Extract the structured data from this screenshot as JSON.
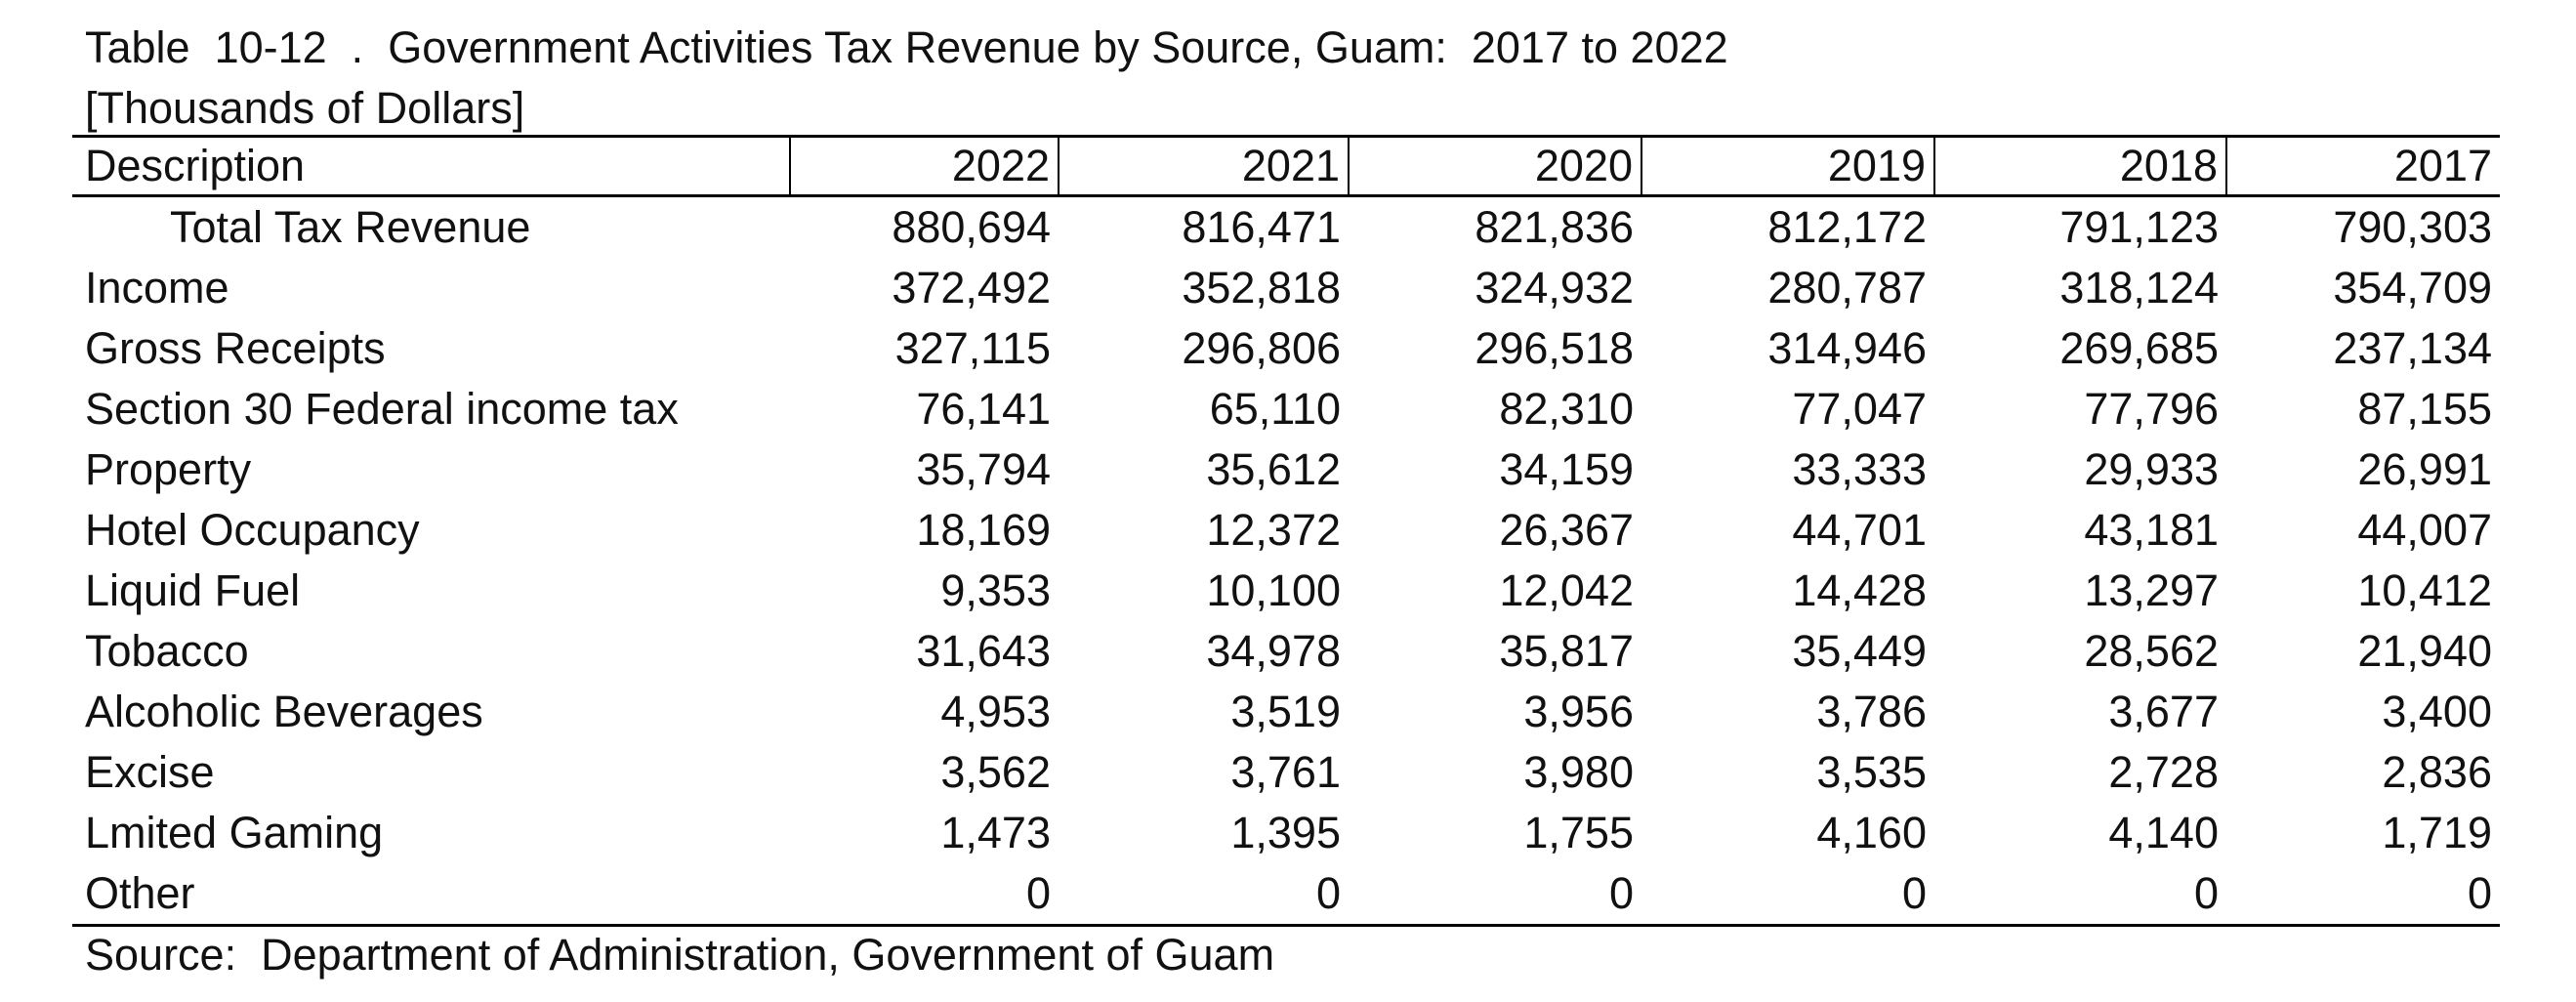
{
  "document": {
    "title": "Table  10-12  .  Government Activities Tax Revenue by Source, Guam:  2017 to 2022",
    "subtitle": "[Thousands of Dollars]",
    "source": "Source:  Department of Administration, Government of Guam"
  },
  "table": {
    "headers": [
      "Description",
      "2022",
      "2021",
      "2020",
      "2019",
      "2018",
      "2017"
    ],
    "rows": [
      {
        "label": "Total Tax Revenue",
        "indent": true,
        "values": [
          "880,694",
          "816,471",
          "821,836",
          "812,172",
          "791,123",
          "790,303"
        ]
      },
      {
        "label": "Income",
        "indent": false,
        "values": [
          "372,492",
          "352,818",
          "324,932",
          "280,787",
          "318,124",
          "354,709"
        ]
      },
      {
        "label": "Gross Receipts",
        "indent": false,
        "values": [
          "327,115",
          "296,806",
          "296,518",
          "314,946",
          "269,685",
          "237,134"
        ]
      },
      {
        "label": "Section 30 Federal income tax",
        "indent": false,
        "values": [
          "76,141",
          "65,110",
          "82,310",
          "77,047",
          "77,796",
          "87,155"
        ]
      },
      {
        "label": "Property",
        "indent": false,
        "values": [
          "35,794",
          "35,612",
          "34,159",
          "33,333",
          "29,933",
          "26,991"
        ]
      },
      {
        "label": "Hotel Occupancy",
        "indent": false,
        "values": [
          "18,169",
          "12,372",
          "26,367",
          "44,701",
          "43,181",
          "44,007"
        ]
      },
      {
        "label": "Liquid Fuel",
        "indent": false,
        "values": [
          "9,353",
          "10,100",
          "12,042",
          "14,428",
          "13,297",
          "10,412"
        ]
      },
      {
        "label": "Tobacco",
        "indent": false,
        "values": [
          "31,643",
          "34,978",
          "35,817",
          "35,449",
          "28,562",
          "21,940"
        ]
      },
      {
        "label": "Alcoholic Beverages",
        "indent": false,
        "values": [
          "4,953",
          "3,519",
          "3,956",
          "3,786",
          "3,677",
          "3,400"
        ]
      },
      {
        "label": "Excise",
        "indent": false,
        "values": [
          "3,562",
          "3,761",
          "3,980",
          "3,535",
          "2,728",
          "2,836"
        ]
      },
      {
        "label": "Lmited Gaming",
        "indent": false,
        "values": [
          "1,473",
          "1,395",
          "1,755",
          "4,160",
          "4,140",
          "1,719"
        ]
      },
      {
        "label": "Other",
        "indent": false,
        "values": [
          "0",
          "0",
          "0",
          "0",
          "0",
          "0"
        ]
      }
    ]
  }
}
